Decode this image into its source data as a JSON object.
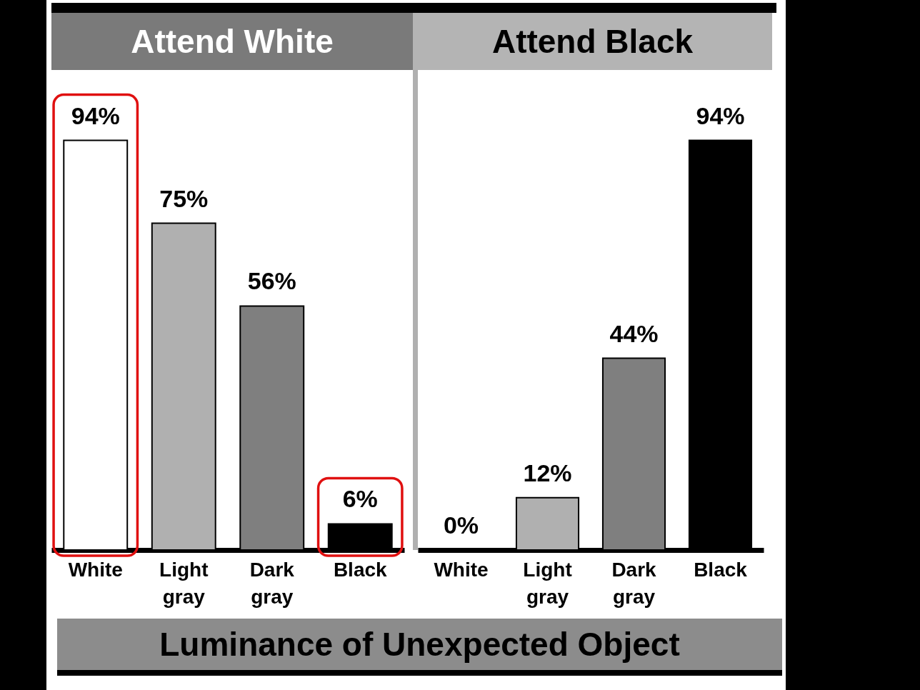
{
  "chart_data": [
    {
      "type": "bar",
      "title": "Attend White",
      "xlabel": "Luminance of Unexpected Object",
      "categories": [
        "White",
        "Light gray",
        "Dark gray",
        "Black"
      ],
      "values": [
        94,
        75,
        56,
        6
      ],
      "colors": [
        "#ffffff",
        "#b0b0b0",
        "#7f7f7f",
        "#000000"
      ],
      "value_labels": [
        "94%",
        "75%",
        "56%",
        "6%"
      ],
      "tick_labels": "x"
    },
    {
      "type": "bar",
      "title": "Attend Black",
      "categories": [
        "White",
        "Light gray",
        "Dark gray",
        "Black"
      ],
      "values": [
        0,
        12,
        44,
        94
      ],
      "colors": [
        "#ffffff",
        "#b0b0b0",
        "#7f7f7f",
        "#000000"
      ],
      "value_labels": [
        "0%",
        "12%",
        "44%",
        "94%"
      ],
      "tick_labels": "x"
    }
  ]
}
